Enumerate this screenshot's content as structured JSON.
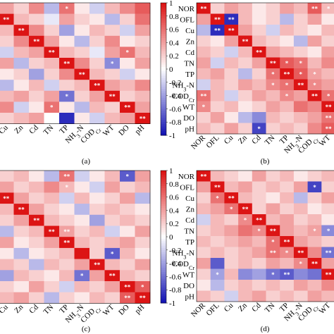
{
  "chart_data": [
    {
      "type": "heatmap",
      "panel_label": "(a)",
      "visible_columns": [
        "Cu",
        "Zn",
        "Cd",
        "TN",
        "TP",
        "NH3-N",
        "COD_Cr",
        "WT",
        "DO",
        "pH"
      ],
      "colorbar": {
        "ticks": [
          "1",
          "0.8",
          "0.6",
          "0.4",
          "0.2",
          "0",
          "-0.2",
          "-0.4",
          "-0.6",
          "-0.8",
          "-1"
        ],
        "range": [
          -1,
          1
        ]
      },
      "values": [
        [
          0.4,
          0.2,
          0.5,
          -0.3,
          0.6,
          0.1,
          -0.2,
          0.3,
          0.5,
          0.7
        ],
        [
          1.0,
          0.3,
          0.2,
          -0.1,
          0.4,
          0.2,
          0.1,
          -0.3,
          0.2,
          0.6
        ],
        [
          0.3,
          1.0,
          0.5,
          0.2,
          -0.4,
          0.1,
          0.3,
          0.2,
          -0.2,
          0.4
        ],
        [
          0.2,
          0.5,
          1.0,
          0.4,
          0.1,
          -0.3,
          0.2,
          0.5,
          0.1,
          0.2
        ],
        [
          -0.2,
          0.3,
          0.4,
          1.0,
          0.3,
          0.2,
          -0.1,
          0.4,
          0.6,
          0.3
        ],
        [
          0.4,
          -0.3,
          0.2,
          0.3,
          1.0,
          0.5,
          0.2,
          -0.5,
          0.1,
          0.4
        ],
        [
          0.1,
          0.2,
          -0.4,
          0.2,
          0.5,
          1.0,
          0.3,
          0.2,
          -0.2,
          0.1
        ],
        [
          -0.3,
          0.1,
          0.3,
          -0.2,
          0.2,
          0.3,
          1.0,
          0.4,
          0.3,
          0.5
        ],
        [
          0.3,
          0.4,
          0.2,
          0.4,
          -0.6,
          0.2,
          0.4,
          1.0,
          0.2,
          0.3
        ],
        [
          0.5,
          -0.2,
          0.1,
          0.6,
          0.1,
          -0.3,
          0.3,
          0.2,
          1.0,
          0.4
        ],
        [
          0.2,
          0.3,
          0.4,
          0.0,
          -0.9,
          0.1,
          -0.2,
          0.3,
          0.4,
          1.0
        ]
      ],
      "significance": [
        [
          "",
          "",
          "",
          "",
          "*",
          "",
          "",
          "",
          "",
          ""
        ],
        [
          "**",
          "",
          "",
          "",
          "",
          "",
          "",
          "",
          "",
          ""
        ],
        [
          "",
          "**",
          "",
          "",
          "",
          "",
          "",
          "",
          "",
          ""
        ],
        [
          "",
          "",
          "**",
          "",
          "",
          "",
          "",
          "",
          "",
          ""
        ],
        [
          "",
          "",
          "",
          "**",
          "",
          "",
          "",
          "",
          "*",
          ""
        ],
        [
          "",
          "",
          "",
          "",
          "**",
          "",
          "",
          "*",
          "",
          ""
        ],
        [
          "",
          "",
          "",
          "",
          "",
          "**",
          "",
          "",
          "",
          ""
        ],
        [
          "",
          "",
          "",
          "",
          "",
          "",
          "**",
          "",
          "",
          ""
        ],
        [
          "",
          "",
          "",
          "",
          "*",
          "",
          "",
          "**",
          "",
          ""
        ],
        [
          "",
          "",
          "",
          "*",
          "",
          "",
          "",
          "",
          "**",
          ""
        ],
        [
          "",
          "",
          "",
          "",
          "",
          "",
          "",
          "",
          "",
          "**"
        ]
      ]
    },
    {
      "type": "heatmap",
      "panel_label": "(b)",
      "rows": [
        "NOR",
        "OFL",
        "Cu",
        "Zn",
        "Cd",
        "TN",
        "TP",
        "NH3-N",
        "COD_Cr",
        "WT",
        "DO",
        "pH"
      ],
      "columns": [
        "NOR",
        "OFL",
        "Cu",
        "Zn",
        "Cd",
        "TN",
        "TP",
        "NH3-N",
        "COD_Cr",
        "WT"
      ],
      "values": [
        [
          1.0,
          0.2,
          0.4,
          0.3,
          0.1,
          0.2,
          0.4,
          0.3,
          0.7,
          0.3
        ],
        [
          0.4,
          1.0,
          -0.9,
          0.3,
          0.1,
          0.2,
          -0.3,
          0.2,
          0.4,
          0.1
        ],
        [
          -0.3,
          -0.9,
          1.0,
          0.4,
          0.2,
          -0.2,
          0.3,
          0.2,
          0.1,
          0.3
        ],
        [
          0.2,
          0.1,
          0.4,
          1.0,
          0.3,
          0.2,
          0.1,
          -0.3,
          0.4,
          0.2
        ],
        [
          0.3,
          0.2,
          -0.2,
          0.3,
          1.0,
          0.4,
          0.3,
          0.2,
          0.1,
          0.4
        ],
        [
          0.4,
          -0.2,
          0.3,
          0.2,
          0.4,
          1.0,
          0.7,
          0.6,
          0.3,
          0.5
        ],
        [
          0.3,
          0.4,
          0.2,
          -0.3,
          0.2,
          0.6,
          1.0,
          0.7,
          0.4,
          0.3
        ],
        [
          -0.2,
          0.3,
          0.2,
          0.4,
          0.3,
          0.5,
          0.6,
          1.0,
          0.5,
          0.4
        ],
        [
          0.6,
          0.3,
          -0.2,
          0.2,
          0.4,
          0.3,
          0.5,
          0.4,
          1.0,
          0.6
        ],
        [
          0.5,
          0.2,
          0.3,
          0.1,
          0.2,
          0.4,
          0.3,
          0.6,
          0.5,
          1.0
        ],
        [
          0.2,
          0.4,
          0.1,
          -0.3,
          -0.5,
          0.3,
          0.2,
          0.3,
          0.4,
          0.6
        ],
        [
          0.3,
          0.2,
          0.4,
          0.2,
          -0.8,
          0.2,
          0.3,
          0.2,
          0.5,
          0.7
        ]
      ],
      "significance": [
        [
          "**",
          "",
          "",
          "",
          "",
          "",
          "",
          "",
          "**",
          "*"
        ],
        [
          "",
          "**",
          "**",
          "",
          "",
          "",
          "",
          "",
          "",
          ""
        ],
        [
          "",
          "**",
          "**",
          "",
          "",
          "",
          "",
          "",
          "",
          ""
        ],
        [
          "",
          "",
          "",
          "**",
          "",
          "",
          "",
          "",
          "",
          ""
        ],
        [
          "",
          "",
          "",
          "",
          "**",
          "",
          "",
          "",
          "",
          ""
        ],
        [
          "",
          "",
          "",
          "",
          "",
          "**",
          "*",
          "*",
          "",
          ""
        ],
        [
          "",
          "",
          "",
          "",
          "",
          "*",
          "**",
          "*",
          "*",
          ""
        ],
        [
          "",
          "",
          "",
          "",
          "",
          "*",
          "*",
          "**",
          "*",
          ""
        ],
        [
          "**",
          "",
          "",
          "",
          "",
          "",
          "*",
          "",
          "**",
          "*"
        ],
        [
          "*",
          "",
          "",
          "",
          "",
          "",
          "",
          "",
          "",
          "**"
        ],
        [
          "",
          "",
          "",
          "",
          "",
          "",
          "",
          "",
          "",
          "**"
        ],
        [
          "",
          "",
          "",
          "",
          "*",
          "",
          "",
          "",
          "",
          "**"
        ]
      ]
    },
    {
      "type": "heatmap",
      "panel_label": "(c)",
      "visible_columns": [
        "Cu",
        "Zn",
        "Cd",
        "TN",
        "TP",
        "NH3-N",
        "COD_Cr",
        "WT",
        "DO",
        "pH"
      ],
      "colorbar": {
        "ticks": [
          "1",
          "0.8",
          "0.6",
          "0.4",
          "0.2",
          "0",
          "-0.2",
          "-0.4",
          "-0.6",
          "-0.8",
          "-1"
        ],
        "range": [
          -1,
          1
        ]
      },
      "values": [
        [
          0.2,
          0.3,
          0.1,
          -0.3,
          0.6,
          -0.2,
          0.1,
          0.3,
          -0.7,
          0.4
        ],
        [
          0.4,
          0.2,
          0.3,
          0.5,
          0.3,
          0.1,
          -0.2,
          0.4,
          0.2,
          0.3
        ],
        [
          1.0,
          0.4,
          0.2,
          0.3,
          -0.2,
          0.3,
          0.1,
          0.2,
          0.4,
          -0.3
        ],
        [
          0.3,
          1.0,
          0.4,
          0.2,
          0.1,
          -0.3,
          0.2,
          0.3,
          0.2,
          0.1
        ],
        [
          0.2,
          0.4,
          1.0,
          0.3,
          0.2,
          0.1,
          -0.4,
          0.2,
          0.3,
          0.2
        ],
        [
          -0.3,
          0.2,
          0.3,
          1.0,
          0.4,
          0.2,
          0.3,
          -0.2,
          0.1,
          0.4
        ],
        [
          0.4,
          0.1,
          0.2,
          0.4,
          1.0,
          0.3,
          0.2,
          0.3,
          0.4,
          0.2
        ],
        [
          0.1,
          -0.3,
          0.1,
          0.2,
          0.3,
          1.0,
          0.2,
          -0.7,
          0.3,
          0.1
        ],
        [
          0.3,
          0.2,
          -0.3,
          0.3,
          0.2,
          0.4,
          1.0,
          0.3,
          0.2,
          0.4
        ],
        [
          -0.4,
          0.3,
          0.2,
          0.1,
          0.3,
          -0.6,
          0.4,
          1.0,
          0.3,
          0.2
        ],
        [
          0.2,
          0.1,
          0.4,
          0.2,
          -0.2,
          0.3,
          0.2,
          0.4,
          1.0,
          0.7
        ],
        [
          0.3,
          0.4,
          0.2,
          -0.3,
          0.2,
          0.1,
          0.3,
          0.2,
          0.7,
          1.0
        ]
      ],
      "significance": [
        [
          "",
          "",
          "",
          "",
          "**",
          "",
          "",
          "",
          "*",
          ""
        ],
        [
          "",
          "",
          "",
          "",
          "*",
          "",
          "",
          "",
          "",
          ""
        ],
        [
          "**",
          "",
          "",
          "",
          "",
          "",
          "",
          "",
          "",
          ""
        ],
        [
          "",
          "**",
          "",
          "",
          "",
          "",
          "",
          "",
          "",
          ""
        ],
        [
          "",
          "",
          "**",
          "",
          "",
          "",
          "",
          "",
          "",
          ""
        ],
        [
          "",
          "",
          "",
          "**",
          "**",
          "",
          "",
          "",
          "",
          ""
        ],
        [
          "",
          "",
          "",
          "",
          "**",
          "",
          "",
          "",
          "",
          ""
        ],
        [
          "",
          "",
          "",
          "",
          "",
          "",
          "",
          "*",
          "",
          ""
        ],
        [
          "",
          "",
          "",
          "",
          "",
          "",
          "**",
          "",
          "",
          ""
        ],
        [
          "",
          "",
          "",
          "",
          "",
          "*",
          "",
          "**",
          "",
          ""
        ],
        [
          "",
          "",
          "",
          "",
          "",
          "",
          "",
          "",
          "**",
          "*"
        ],
        [
          "",
          "",
          "",
          "",
          "",
          "",
          "",
          "",
          "**",
          "**"
        ]
      ]
    },
    {
      "type": "heatmap",
      "panel_label": "(d)",
      "rows": [
        "NOR",
        "OFL",
        "Cu",
        "Zn",
        "Cd",
        "TN",
        "TP",
        "NH3-N",
        "COD_Cr",
        "WT",
        "DO",
        "pH"
      ],
      "columns": [
        "NOR",
        "OFL",
        "Cu",
        "Zn",
        "Cd",
        "TN",
        "TP",
        "NH3-N",
        "COD_Cr",
        "WT"
      ],
      "values": [
        [
          1.0,
          0.3,
          0.2,
          0.1,
          0.4,
          0.2,
          0.3,
          0.1,
          0.2,
          0.3
        ],
        [
          0.4,
          1.0,
          0.3,
          0.4,
          0.2,
          0.3,
          0.2,
          0.4,
          -0.8,
          0.2
        ],
        [
          0.2,
          0.6,
          1.0,
          0.3,
          0.2,
          0.1,
          0.3,
          -0.3,
          0.2,
          0.4
        ],
        [
          0.3,
          0.4,
          0.6,
          1.0,
          0.2,
          0.4,
          0.2,
          0.3,
          0.1,
          0.2
        ],
        [
          -0.2,
          0.3,
          0.2,
          0.5,
          1.0,
          0.3,
          0.4,
          0.2,
          0.3,
          0.1
        ],
        [
          0.2,
          0.3,
          0.4,
          0.6,
          0.5,
          1.0,
          0.4,
          0.3,
          0.4,
          -0.5
        ],
        [
          0.3,
          0.2,
          0.3,
          0.4,
          0.3,
          0.6,
          1.0,
          0.4,
          0.3,
          0.2
        ],
        [
          0.2,
          0.3,
          0.2,
          0.3,
          0.4,
          0.6,
          0.5,
          1.0,
          0.5,
          -0.6
        ],
        [
          0.4,
          -0.7,
          0.2,
          0.3,
          0.2,
          0.4,
          0.3,
          0.5,
          1.0,
          0.4
        ],
        [
          0.2,
          -0.4,
          0.3,
          -0.5,
          -0.4,
          -0.6,
          -0.7,
          -0.5,
          -0.6,
          1.0
        ],
        [
          0.1,
          -0.3,
          0.2,
          0.3,
          0.2,
          0.3,
          0.2,
          0.4,
          0.3,
          0.5
        ],
        [
          0.3,
          0.2,
          -0.2,
          0.3,
          0.4,
          0.2,
          0.3,
          0.2,
          0.4,
          0.3
        ]
      ],
      "significance": [
        [
          "**",
          "",
          "",
          "",
          "",
          "",
          "",
          "",
          "",
          ""
        ],
        [
          "",
          "**",
          "",
          "",
          "",
          "",
          "",
          "",
          "*",
          ""
        ],
        [
          "",
          "*",
          "**",
          "",
          "",
          "",
          "",
          "",
          "",
          ""
        ],
        [
          "",
          "",
          "*",
          "**",
          "",
          "",
          "",
          "",
          "",
          ""
        ],
        [
          "",
          "",
          "",
          "*",
          "**",
          "",
          "",
          "",
          "",
          ""
        ],
        [
          "",
          "",
          "",
          "",
          "*",
          "**",
          "",
          "",
          "*",
          "*"
        ],
        [
          "",
          "",
          "",
          "",
          "",
          "*",
          "**",
          "",
          "",
          ""
        ],
        [
          "",
          "",
          "",
          "",
          "",
          "**",
          "*",
          "**",
          "",
          "**"
        ],
        [
          "",
          "",
          "",
          "",
          "",
          "",
          "",
          "*",
          "**",
          ""
        ],
        [
          "",
          "*",
          "",
          "",
          "",
          "*",
          "**",
          "",
          "",
          "**"
        ],
        [
          "",
          "",
          "",
          "",
          "",
          "",
          "",
          "",
          "",
          ""
        ],
        [
          "",
          "",
          "",
          "",
          "",
          "",
          "",
          "",
          "",
          ""
        ]
      ]
    }
  ]
}
